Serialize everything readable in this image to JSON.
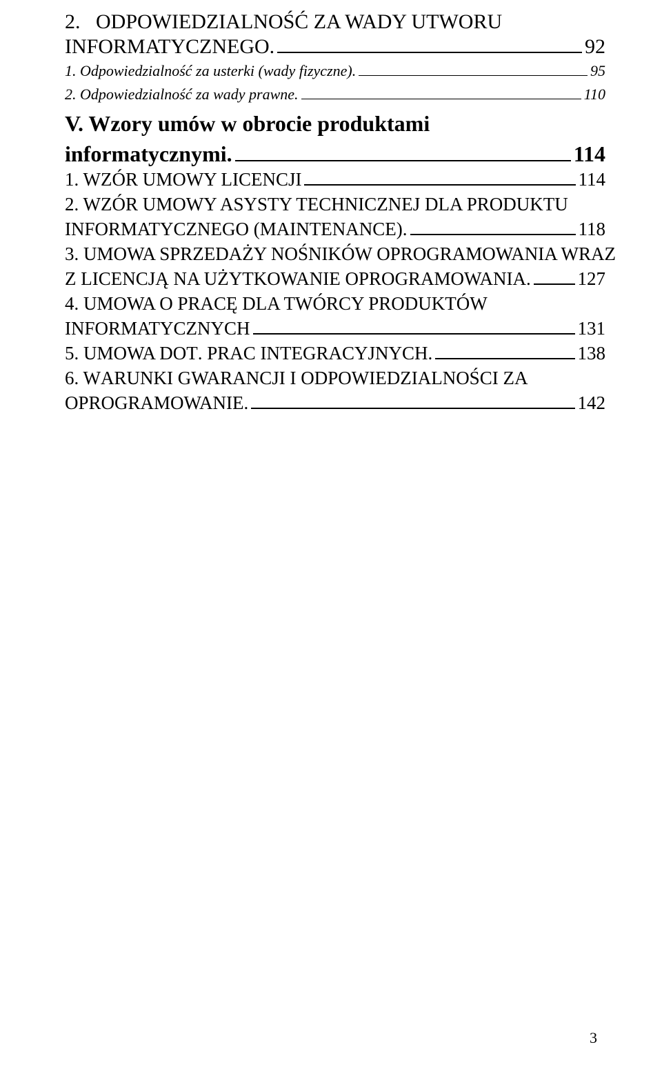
{
  "heading2": {
    "line1": "2.   ODPOWIEDZIALNOŚĆ ZA WADY UTWORU",
    "line2_label": "INFORMATYCZNEGO.",
    "line2_page": "92"
  },
  "italic_entries": [
    {
      "label": "1. Odpowiedzialność za usterki (wady fizyczne).",
      "page": "95"
    },
    {
      "label": "2. Odpowiedzialność za wady prawne.",
      "page": "110"
    }
  ],
  "bold_block": {
    "line1": "V. Wzory umów w obrocie produktami",
    "line2_label": "informatycznymi.",
    "line2_page": "114"
  },
  "sc_entries": [
    {
      "lines": [
        {
          "label_html": "1. W<span class='sc-text'>ZÓR UMOWY LICENCJI</span>",
          "page": "114"
        }
      ]
    },
    {
      "lines": [
        {
          "label_html": "2. W<span class='sc-text'>ZÓR UMOWY ASYSTY TECHNICZNEJ DLA PRODUKTU</span>"
        },
        {
          "label_html": "<span class='sc-text'>INFORMATYCZNEGO</span> (<span class='sc-text'>MAINTENANCE</span>).",
          "page": "118"
        }
      ]
    },
    {
      "lines": [
        {
          "label_html": "3. U<span class='sc-text'>MOWA SPRZEDAŻY NOŚNIKÓW OPROGRAMOWANIA WRAZ</span>"
        },
        {
          "label_html": "<span class='sc-text'>Z LICENCJĄ NA UŻYTKOWANIE OPROGRAMOWANIA</span>.",
          "page": "127"
        }
      ]
    },
    {
      "lines": [
        {
          "label_html": "4. U<span class='sc-text'>MOWA O PRACĘ DLA TWÓRCY PRODUKTÓW</span>"
        },
        {
          "label_html": "<span class='sc-text'>INFORMATYCZNYCH</span>",
          "page": "131"
        }
      ]
    },
    {
      "lines": [
        {
          "label_html": "5. U<span class='sc-text'>MOWA DOT</span>. <span class='sc-text'>PRAC INTEGRACYJNYCH</span>.",
          "page": "138"
        }
      ]
    },
    {
      "lines": [
        {
          "label_html": "6. W<span class='sc-text'>ARUNKI GWARANCJI I ODPOWIEDZIALNOŚCI ZA</span>"
        },
        {
          "label_html": "<span class='sc-text'>OPROGRAMOWANIE</span>.",
          "page": "142"
        }
      ]
    }
  ],
  "footer_page": "3"
}
